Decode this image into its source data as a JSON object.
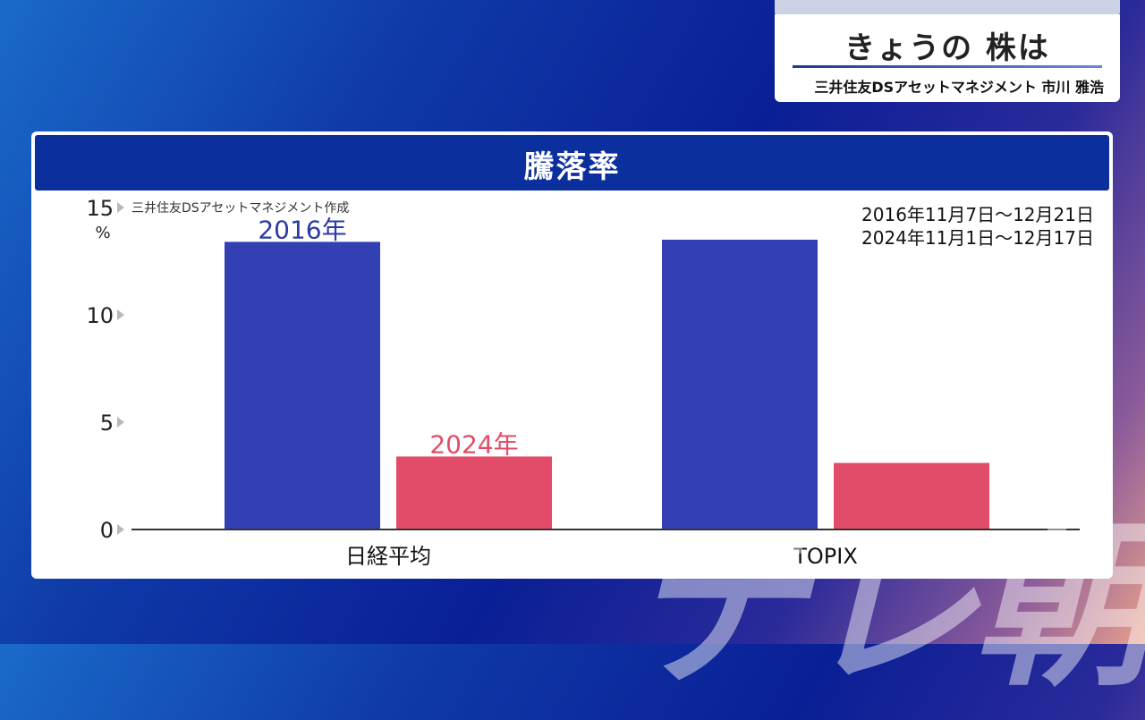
{
  "caption": {
    "title": "きょうの 株は",
    "subtitle": "三井住友DSアセットマネジメント 市川 雅浩"
  },
  "panel": {
    "title": "騰落率",
    "source": "三井住友DSアセットマネジメント作成",
    "periods": [
      "2016年11月7日〜12月21日",
      "2024年11月1日〜12月17日"
    ]
  },
  "watermark": "テレ朝",
  "colors": {
    "series_2016": "#3340b4",
    "series_2024": "#e34c68",
    "label_2016": "#2b3aa8",
    "label_2024": "#e34c68"
  },
  "chart_data": {
    "type": "bar",
    "title": "騰落率",
    "categories": [
      "日経平均",
      "TOPIX"
    ],
    "series": [
      {
        "name": "2016年",
        "values": [
          13.4,
          13.5
        ]
      },
      {
        "name": "2024年",
        "values": [
          3.4,
          3.1
        ]
      }
    ],
    "ylabel": "%",
    "ylim": [
      0,
      15
    ],
    "yticks": [
      "0",
      "5",
      "10",
      "15"
    ]
  }
}
